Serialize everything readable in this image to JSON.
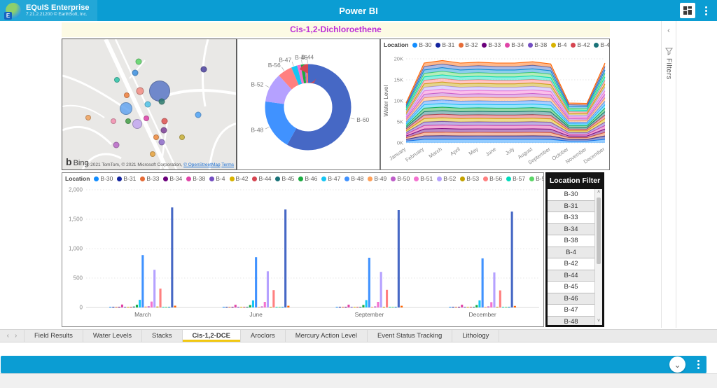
{
  "header": {
    "app_title": "EQuIS Enterprise",
    "app_subtitle": "7.21.2.21200 © EarthSoft, Inc.",
    "center_title": "Power BI",
    "brand_color": "#0b9dd3"
  },
  "icons": {
    "kebab": "⋮",
    "chevron_down": "⌄",
    "chevron_left": "‹",
    "chevron_right": "›",
    "rail_collapse": "‹",
    "scroll_up": "˄",
    "scroll_down": "˅",
    "legend_overflow": "▶"
  },
  "filters_rail": {
    "label": "Filters"
  },
  "report": {
    "title": "Cis-1,2-Dichloroethene",
    "title_color": "#bd2ed6"
  },
  "map": {
    "bing_b": "b",
    "bing_label": "Bing",
    "attribution": "© 2021 TomTom, © 2021 Microsoft Corporation, ",
    "link_osm": "© OpenStreetMap",
    "link_terms": "Terms",
    "bubbles": [
      {
        "x": 44,
        "y": 17,
        "d": 9,
        "color": "#5BD667"
      },
      {
        "x": 42,
        "y": 26,
        "d": 9,
        "color": "#3B8FE0"
      },
      {
        "x": 31.6,
        "y": 31,
        "d": 8,
        "color": "#2BC4A8"
      },
      {
        "x": 81.6,
        "y": 23,
        "d": 9,
        "color": "#4A3F9E"
      },
      {
        "x": 44.8,
        "y": 40,
        "d": 11,
        "color": "#F28B82"
      },
      {
        "x": 37.2,
        "y": 43,
        "d": 8,
        "color": "#F2803C"
      },
      {
        "x": 56,
        "y": 40,
        "d": 30,
        "color": "#5B78C7"
      },
      {
        "x": 57.2,
        "y": 48,
        "d": 9,
        "color": "#2E7D6E"
      },
      {
        "x": 49.2,
        "y": 50,
        "d": 9,
        "color": "#4FC3E8"
      },
      {
        "x": 36.8,
        "y": 53,
        "d": 18,
        "color": "#64A5F0"
      },
      {
        "x": 78.4,
        "y": 58,
        "d": 9,
        "color": "#4FA3F7"
      },
      {
        "x": 14.8,
        "y": 60,
        "d": 8,
        "color": "#F2A25C"
      },
      {
        "x": 29.6,
        "y": 63,
        "d": 8,
        "color": "#F48FB1"
      },
      {
        "x": 38,
        "y": 63,
        "d": 8,
        "color": "#43A047"
      },
      {
        "x": 48.4,
        "y": 61,
        "d": 8,
        "color": "#E040AB"
      },
      {
        "x": 43.2,
        "y": 65,
        "d": 14,
        "color": "#C3A8F0"
      },
      {
        "x": 58.8,
        "y": 63,
        "d": 9,
        "color": "#E05252"
      },
      {
        "x": 58.4,
        "y": 70,
        "d": 9,
        "color": "#7E3F98"
      },
      {
        "x": 68.8,
        "y": 75,
        "d": 8,
        "color": "#C9B037"
      },
      {
        "x": 54,
        "y": 75,
        "d": 8,
        "color": "#F28B3C"
      },
      {
        "x": 57.2,
        "y": 79,
        "d": 9,
        "color": "#8E6BC9"
      },
      {
        "x": 31,
        "y": 81,
        "d": 9,
        "color": "#BA68C8"
      },
      {
        "x": 52,
        "y": 88,
        "d": 8,
        "color": "#E8A33C"
      }
    ]
  },
  "chart_data": [
    {
      "type": "pie",
      "donut": true,
      "title": "",
      "slices": [
        {
          "name": "B-60",
          "value": 58,
          "color": "#4668C5",
          "label": true
        },
        {
          "name": "B-48",
          "value": 19,
          "color": "#4092FF",
          "label": true
        },
        {
          "name": "B-52",
          "value": 11,
          "color": "#B5A1FF",
          "label": true
        },
        {
          "name": "B-56",
          "value": 5.5,
          "color": "#FF8080",
          "label": true
        },
        {
          "name": "B-47",
          "value": 2.2,
          "color": "#15C6F4",
          "label": true
        },
        {
          "name": "B-51",
          "value": 1.4,
          "color": "#F472D0",
          "label": false
        },
        {
          "name": "B-46",
          "value": 1.4,
          "color": "#1AAB40",
          "label": true
        },
        {
          "name": "B-50",
          "value": 0.6,
          "color": "#BE5DC9",
          "label": false
        },
        {
          "name": "B-49",
          "value": 0.5,
          "color": "#FFA058",
          "label": false
        },
        {
          "name": "B-44",
          "value": 0.4,
          "color": "#D64550",
          "label": true
        }
      ]
    },
    {
      "type": "area",
      "stacked": true,
      "title": "",
      "xlabel": "",
      "ylabel": "Water Level",
      "ylim": [
        0,
        20000
      ],
      "yticks": [
        "0K",
        "5K",
        "10K",
        "15K",
        "20K"
      ],
      "x": [
        "January",
        "February",
        "March",
        "April",
        "May",
        "June",
        "July",
        "August",
        "September",
        "October",
        "November",
        "December"
      ],
      "monthly_totals_k": [
        9.5,
        19.0,
        19.6,
        19.0,
        19.2,
        19.0,
        19.0,
        19.3,
        18.8,
        9.5,
        9.4,
        19.0
      ],
      "legend": {
        "label": "Location",
        "items": [
          {
            "name": "B-30",
            "color": "#118DFF"
          },
          {
            "name": "B-31",
            "color": "#12239E"
          },
          {
            "name": "B-32",
            "color": "#E66C37"
          },
          {
            "name": "B-33",
            "color": "#6B007B"
          },
          {
            "name": "B-34",
            "color": "#E044A7"
          },
          {
            "name": "B-38",
            "color": "#744EC2"
          },
          {
            "name": "B-4",
            "color": "#D9B300"
          },
          {
            "name": "B-42",
            "color": "#D64550"
          },
          {
            "name": "B-44",
            "color": "#197278"
          }
        ],
        "overflow": true
      },
      "band_palette": [
        "#118DFF",
        "#12239E",
        "#E66C37",
        "#6B007B",
        "#E044A7",
        "#744EC2",
        "#D9B300",
        "#D64550",
        "#197278",
        "#1AAB40",
        "#15C6F4",
        "#4092FF",
        "#FFA058",
        "#BE5DC9",
        "#F472D0",
        "#B5A1FF",
        "#C4A200",
        "#FF8080",
        "#00DBBC",
        "#5BD667",
        "#0091D5",
        "#4668C5",
        "#FF6300"
      ],
      "band_count": 23
    },
    {
      "type": "bar",
      "title": "",
      "ylim": [
        0,
        2000
      ],
      "yticks": [
        "0",
        "500",
        "1,000",
        "1,500",
        "2,000"
      ],
      "ytick_values": [
        0,
        500,
        1000,
        1500,
        2000
      ],
      "categories": [
        "March",
        "June",
        "September",
        "December"
      ],
      "legend": {
        "label": "Location"
      },
      "series": [
        {
          "name": "B-30",
          "color": "#118DFF",
          "values": [
            8,
            8,
            8,
            8
          ]
        },
        {
          "name": "B-31",
          "color": "#12239E",
          "values": [
            5,
            5,
            5,
            5
          ]
        },
        {
          "name": "B-33",
          "color": "#E66C37",
          "values": [
            10,
            8,
            8,
            8
          ]
        },
        {
          "name": "B-34",
          "color": "#6B007B",
          "values": [
            5,
            5,
            5,
            5
          ]
        },
        {
          "name": "B-38",
          "color": "#E044A7",
          "values": [
            50,
            45,
            48,
            46
          ]
        },
        {
          "name": "B-4",
          "color": "#744EC2",
          "values": [
            8,
            8,
            8,
            8
          ]
        },
        {
          "name": "B-42",
          "color": "#D9B300",
          "values": [
            12,
            10,
            10,
            10
          ]
        },
        {
          "name": "B-44",
          "color": "#D64550",
          "values": [
            10,
            8,
            8,
            8
          ]
        },
        {
          "name": "B-45",
          "color": "#197278",
          "values": [
            15,
            12,
            12,
            12
          ]
        },
        {
          "name": "B-46",
          "color": "#1AAB40",
          "values": [
            45,
            40,
            42,
            40
          ]
        },
        {
          "name": "B-47",
          "color": "#15C6F4",
          "values": [
            130,
            120,
            125,
            120
          ]
        },
        {
          "name": "B-48",
          "color": "#4092FF",
          "values": [
            890,
            855,
            845,
            835
          ]
        },
        {
          "name": "B-49",
          "color": "#FFA058",
          "values": [
            15,
            12,
            12,
            12
          ]
        },
        {
          "name": "B-50",
          "color": "#BE5DC9",
          "values": [
            20,
            18,
            18,
            18
          ]
        },
        {
          "name": "B-51",
          "color": "#F472D0",
          "values": [
            100,
            95,
            95,
            90
          ]
        },
        {
          "name": "B-52",
          "color": "#B5A1FF",
          "values": [
            640,
            615,
            605,
            595
          ]
        },
        {
          "name": "B-53",
          "color": "#C4A200",
          "values": [
            15,
            12,
            12,
            12
          ]
        },
        {
          "name": "B-56",
          "color": "#FF8080",
          "values": [
            320,
            295,
            300,
            290
          ]
        },
        {
          "name": "B-57",
          "color": "#00DBBC",
          "values": [
            12,
            10,
            10,
            10
          ]
        },
        {
          "name": "B-58",
          "color": "#5BD667",
          "values": [
            10,
            8,
            8,
            8
          ]
        },
        {
          "name": "B-59",
          "color": "#0091D5",
          "values": [
            8,
            8,
            8,
            8
          ]
        },
        {
          "name": "B-60",
          "color": "#4668C5",
          "values": [
            1700,
            1665,
            1655,
            1630
          ]
        },
        {
          "name": "B-75",
          "color": "#FF6300",
          "values": [
            30,
            28,
            28,
            26
          ]
        }
      ]
    }
  ],
  "location_filter": {
    "title": "Location Filter",
    "items": [
      "B-30",
      "B-31",
      "B-33",
      "B-34",
      "B-38",
      "B-4",
      "B-42",
      "B-44",
      "B-45",
      "B-46",
      "B-47",
      "B-48"
    ]
  },
  "tabs": {
    "items": [
      {
        "label": "Field Results",
        "active": false
      },
      {
        "label": "Water Levels",
        "active": false
      },
      {
        "label": "Stacks",
        "active": false
      },
      {
        "label": "Cis-1,2-DCE",
        "active": true
      },
      {
        "label": "Aroclors",
        "active": false
      },
      {
        "label": "Mercury Action Level",
        "active": false
      },
      {
        "label": "Event Status Tracking",
        "active": false
      },
      {
        "label": "Lithology",
        "active": false
      }
    ]
  }
}
